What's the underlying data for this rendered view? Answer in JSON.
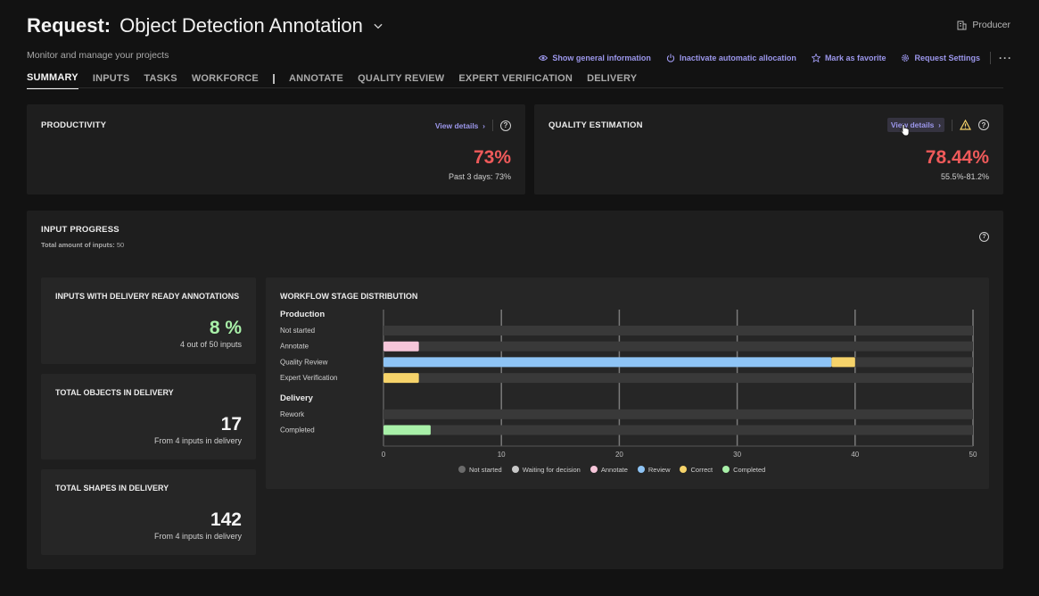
{
  "header": {
    "title_prefix": "Request:",
    "title": "Object Detection Annotation",
    "role": "Producer",
    "subtitle": "Monitor and manage your projects",
    "actions": [
      {
        "label": "Show general information",
        "icon": "eye-icon"
      },
      {
        "label": "Inactivate automatic allocation",
        "icon": "power-icon"
      },
      {
        "label": "Mark as favorite",
        "icon": "star-icon"
      },
      {
        "label": "Request Settings",
        "icon": "gear-icon"
      }
    ],
    "more": "···"
  },
  "tabs": [
    "SUMMARY",
    "INPUTS",
    "TASKS",
    "WORKFORCE",
    "ANNOTATE",
    "QUALITY REVIEW",
    "EXPERT VERIFICATION",
    "DELIVERY"
  ],
  "productivity": {
    "title": "PRODUCTIVITY",
    "view_details": "View details",
    "value": "73%",
    "note": "Past 3 days: 73%"
  },
  "quality": {
    "title": "QUALITY ESTIMATION",
    "view_details": "View details",
    "value": "78.44%",
    "note": "55.5%-81.2%"
  },
  "input_progress": {
    "title": "INPUT PROGRESS",
    "total_label": "Total amount of inputs:",
    "total_value": "50"
  },
  "stats": [
    {
      "title": "INPUTS WITH DELIVERY READY ANNOTATIONS",
      "value": "8 %",
      "sub": "4 out of 50 inputs",
      "color": "#a8f0a8"
    },
    {
      "title": "TOTAL OBJECTS IN DELIVERY",
      "value": "17",
      "sub": "From 4 inputs in delivery",
      "color": "#f5f5f5"
    },
    {
      "title": "TOTAL SHAPES IN DELIVERY",
      "value": "142",
      "sub": "From 4 inputs in delivery",
      "color": "#f5f5f5"
    }
  ],
  "chart_data": {
    "type": "bar",
    "title": "WORKFLOW STAGE DISTRIBUTION",
    "orientation": "horizontal",
    "stacked": true,
    "xlim": [
      0,
      50
    ],
    "xticks": [
      0,
      10,
      20,
      30,
      40,
      50
    ],
    "groups": [
      {
        "name": "Production",
        "categories": [
          "Not started",
          "Annotate",
          "Quality Review",
          "Expert Verification"
        ]
      },
      {
        "name": "Delivery",
        "categories": [
          "Rework",
          "Completed"
        ]
      }
    ],
    "categories": [
      "Not started",
      "Annotate",
      "Quality Review",
      "Expert Verification",
      "Rework",
      "Completed"
    ],
    "series": [
      {
        "name": "Not started",
        "color": "#6b6b6b",
        "values": [
          0,
          0,
          0,
          0,
          0,
          0
        ]
      },
      {
        "name": "Waiting for decision",
        "color": "#c8c8c8",
        "values": [
          0,
          0,
          0,
          0,
          0,
          0
        ]
      },
      {
        "name": "Annotate",
        "color": "#f7c6da",
        "values": [
          0,
          3,
          0,
          0,
          0,
          0
        ]
      },
      {
        "name": "Review",
        "color": "#8ec4f5",
        "values": [
          0,
          0,
          38,
          0,
          0,
          0
        ]
      },
      {
        "name": "Correct",
        "color": "#f6d36a",
        "values": [
          0,
          0,
          2,
          3,
          0,
          0
        ]
      },
      {
        "name": "Completed",
        "color": "#a8f0a8",
        "values": [
          0,
          0,
          0,
          0,
          0,
          4
        ]
      }
    ],
    "grid": true,
    "legend": "bottom"
  }
}
